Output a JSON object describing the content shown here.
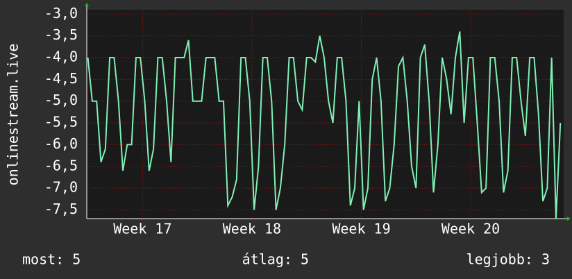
{
  "chart_data": {
    "type": "line",
    "y_label": "onlinestream.live",
    "x": [
      16.5,
      16.54,
      16.58,
      16.62,
      16.66,
      16.7,
      16.74,
      16.78,
      16.82,
      16.86,
      16.9,
      16.94,
      16.98,
      17.02,
      17.06,
      17.1,
      17.14,
      17.18,
      17.22,
      17.26,
      17.3,
      17.34,
      17.38,
      17.42,
      17.46,
      17.5,
      17.54,
      17.58,
      17.62,
      17.66,
      17.7,
      17.74,
      17.78,
      17.82,
      17.86,
      17.9,
      17.94,
      17.98,
      18.02,
      18.06,
      18.1,
      18.14,
      18.18,
      18.22,
      18.26,
      18.3,
      18.34,
      18.38,
      18.42,
      18.46,
      18.5,
      18.54,
      18.58,
      18.62,
      18.66,
      18.7,
      18.74,
      18.78,
      18.82,
      18.86,
      18.9,
      18.94,
      18.98,
      19.02,
      19.06,
      19.1,
      19.14,
      19.18,
      19.22,
      19.26,
      19.3,
      19.34,
      19.38,
      19.42,
      19.46,
      19.5,
      19.54,
      19.58,
      19.62,
      19.66,
      19.7,
      19.74,
      19.78,
      19.82,
      19.86,
      19.9,
      19.94,
      19.98,
      20.02,
      20.06,
      20.1,
      20.14,
      20.18,
      20.22,
      20.26,
      20.3,
      20.34,
      20.38,
      20.42,
      20.46,
      20.5,
      20.54,
      20.58,
      20.62,
      20.66,
      20.7,
      20.74,
      20.78,
      20.82
    ],
    "series": [
      {
        "color": "#7ff0b4",
        "values": [
          -4,
          -5,
          -5,
          -6.4,
          -6.1,
          -4,
          -4,
          -5,
          -6.6,
          -6,
          -6,
          -4,
          -4,
          -5,
          -6.6,
          -6.1,
          -4,
          -4,
          -5,
          -6.4,
          -4,
          -4,
          -4,
          -3.6,
          -5,
          -5,
          -5,
          -4,
          -4,
          -4,
          -5,
          -5,
          -7.4,
          -7.2,
          -6.8,
          -4,
          -4,
          -5,
          -7.5,
          -6.5,
          -4,
          -4,
          -5,
          -7.5,
          -7,
          -6,
          -4,
          -4,
          -5,
          -5.2,
          -4,
          -4,
          -4.1,
          -3.5,
          -4,
          -5,
          -5.5,
          -4,
          -4,
          -5,
          -7.4,
          -7,
          -5,
          -7.5,
          -7,
          -4.5,
          -4,
          -5,
          -7.3,
          -7,
          -6,
          -4.2,
          -4,
          -5,
          -6.5,
          -7,
          -4,
          -3.7,
          -5,
          -7.1,
          -6,
          -4,
          -4.5,
          -5.3,
          -4,
          -3.4,
          -5.5,
          -4,
          -4,
          -5.5,
          -7.1,
          -7,
          -4,
          -4,
          -5,
          -7.1,
          -6.6,
          -4,
          -4,
          -5,
          -5.8,
          -4,
          -4,
          -5.3,
          -7.3,
          -7,
          -4,
          -7.7,
          -5.5
        ]
      }
    ],
    "xlim": [
      16.49,
      20.85
    ],
    "xticks": [
      {
        "value": 17,
        "label": "Week 17"
      },
      {
        "value": 18,
        "label": "Week 18"
      },
      {
        "value": 19,
        "label": "Week 19"
      },
      {
        "value": 20,
        "label": "Week 20"
      }
    ],
    "ylim": [
      -7.7,
      -2.9
    ],
    "yticks": [
      {
        "value": -3,
        "label": "-3,0"
      },
      {
        "value": -3.5,
        "label": "-3,5"
      },
      {
        "value": -4,
        "label": "-4,0"
      },
      {
        "value": -4.5,
        "label": "-4,5"
      },
      {
        "value": -5,
        "label": "-5,0"
      },
      {
        "value": -5.5,
        "label": "-5,5"
      },
      {
        "value": -6,
        "label": "-6,0"
      },
      {
        "value": -6.5,
        "label": "-6,5"
      },
      {
        "value": -7,
        "label": "-7,0"
      },
      {
        "value": -7.5,
        "label": "-7,5"
      }
    ],
    "grid": true,
    "annotations": [
      "most: 5",
      "átlag: 5",
      "legjobb: 3"
    ]
  }
}
